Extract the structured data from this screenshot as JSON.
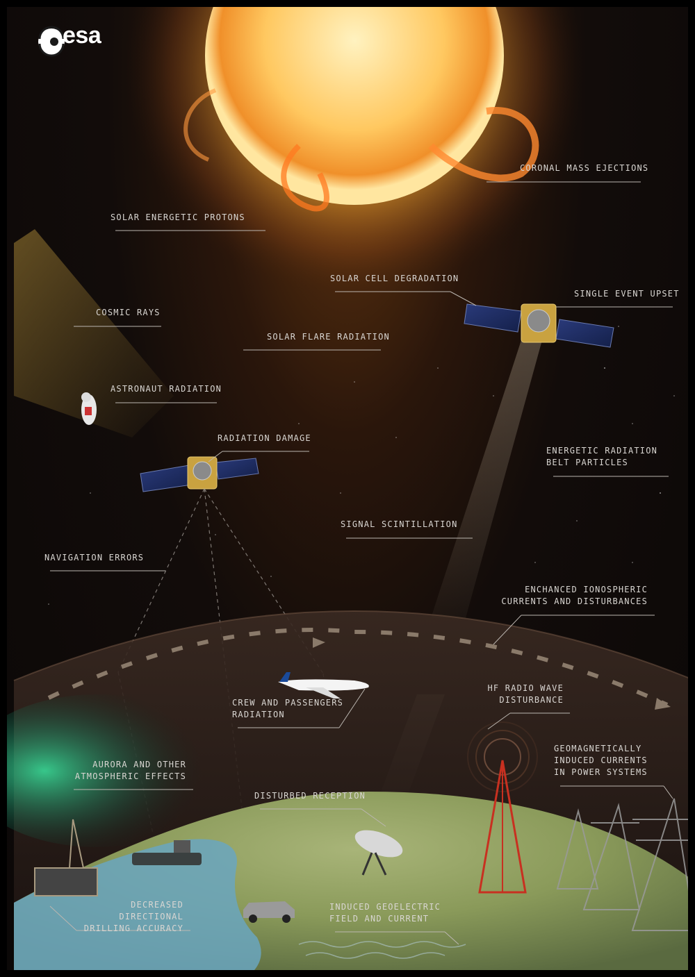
{
  "logo": {
    "text": "esa",
    "icon": "esa-logo-icon"
  },
  "labels": {
    "coronal_mass_ejections": "CORONAL MASS EJECTIONS",
    "solar_energetic_protons": "SOLAR ENERGETIC PROTONS",
    "solar_cell_degradation": "SOLAR CELL DEGRADATION",
    "single_event_upset": "SINGLE EVENT UPSET",
    "cosmic_rays": "COSMIC RAYS",
    "solar_flare_radiation": "SOLAR FLARE RADIATION",
    "astronaut_radiation": "ASTRONAUT RADIATION",
    "radiation_damage": "RADIATION DAMAGE",
    "energetic_radiation_belt": "ENERGETIC RADIATION\nBELT PARTICLES",
    "signal_scintillation": "SIGNAL SCINTILLATION",
    "navigation_errors": "NAVIGATION ERRORS",
    "enhanced_ionospheric": "ENCHANCED IONOSPHERIC\nCURRENTS AND DISTURBANCES",
    "crew_passengers": "CREW AND PASSENGERS\nRADIATION",
    "hf_radio": "HF RADIO WAVE\nDISTURBANCE",
    "geomagnetically_induced": "GEOMAGNETICALLY\nINDUCED CURRENTS\nIN POWER SYSTEMS",
    "aurora": "AURORA AND OTHER\nATMOSPHERIC EFFECTS",
    "disturbed_reception": "DISTURBED RECEPTION",
    "drilling_accuracy": "DECREASED DIRECTIONAL\nDRILLING ACCURACY",
    "geoelectric": "INDUCED GEOELECTRIC\nFIELD AND CURRENT"
  },
  "colors": {
    "sun_core": "#fff6d8",
    "sun_glow": "#f0a030",
    "earth_land": "#8a9a5a",
    "ocean": "#6aa6c0",
    "aurora": "#3cffb0",
    "label": "#d9d6d2"
  }
}
